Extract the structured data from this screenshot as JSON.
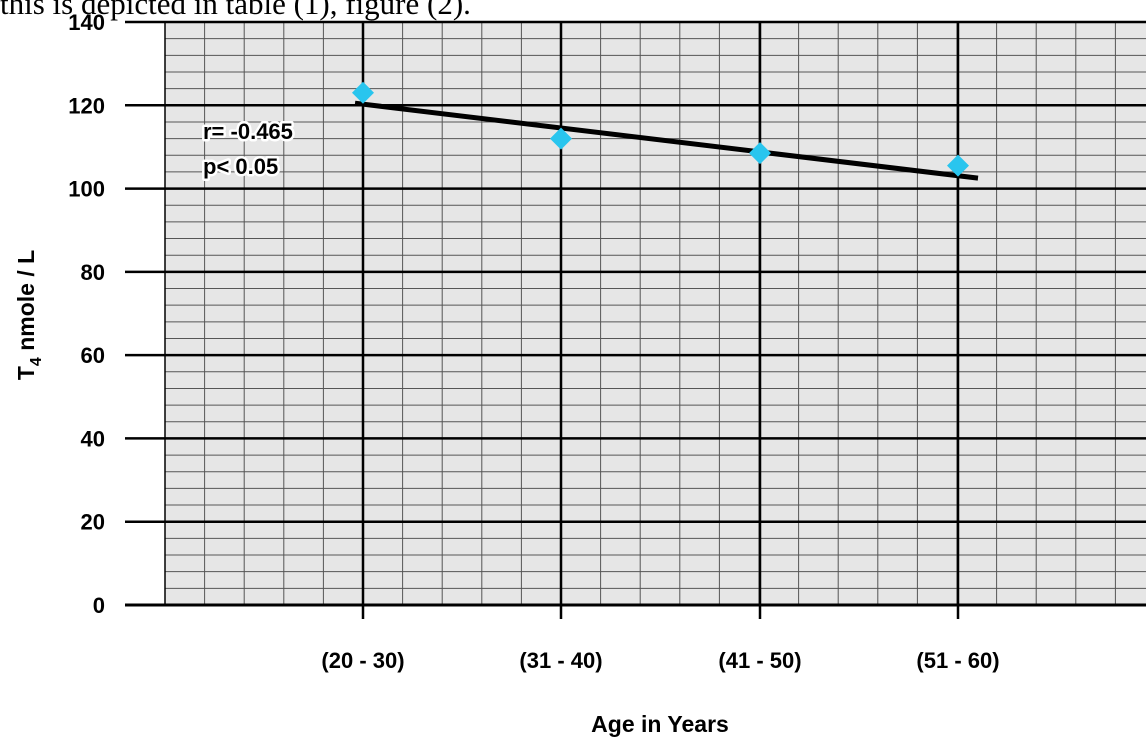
{
  "header_text": "this is depicted in table (1), figure (2).",
  "chart_data": {
    "type": "scatter",
    "title": "",
    "xlabel": "Age in Years",
    "ylabel_main": "T",
    "ylabel_sub": "4",
    "ylabel_rest": " nmole / L",
    "categories": [
      "(20 - 30)",
      "(31 - 40)",
      "(41 - 50)",
      "(51 - 60)"
    ],
    "series": [
      {
        "values": [
          123,
          112,
          108.5,
          105.5
        ],
        "color": "#29c5ee",
        "marker": "diamond"
      }
    ],
    "trendline": {
      "start": 120.5,
      "end": 102.5,
      "color": "#000000"
    },
    "ylim": [
      0,
      140
    ],
    "yticks": [
      "0",
      "20",
      "40",
      "60",
      "80",
      "100",
      "120",
      "140"
    ],
    "grid": true,
    "plot_background": "#e6e6e6",
    "annotations": {
      "r": "r= -0.465",
      "p": "p<   0.05"
    }
  }
}
